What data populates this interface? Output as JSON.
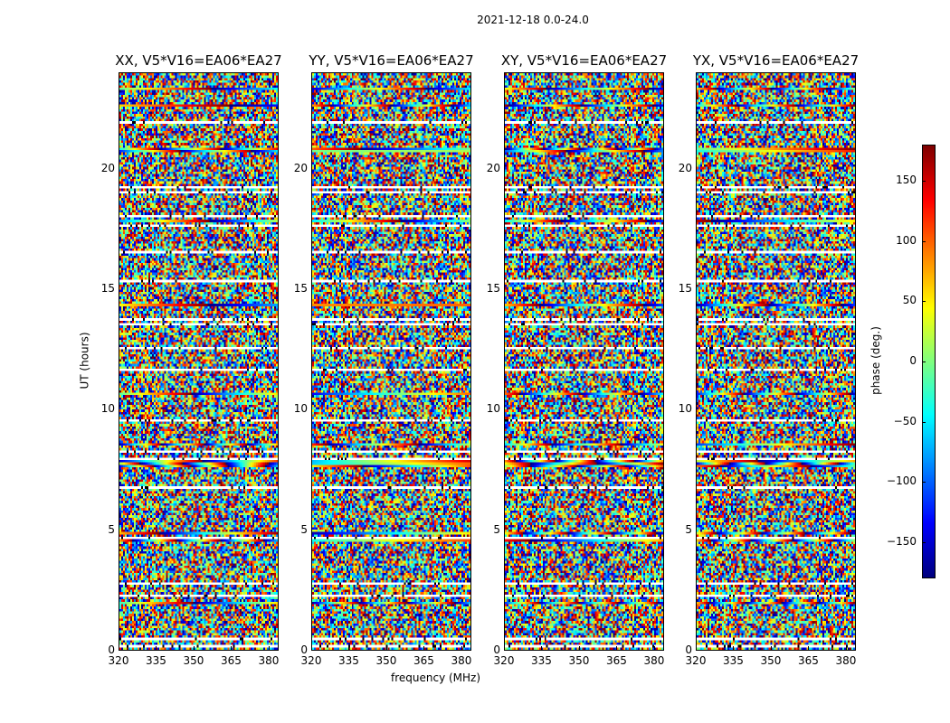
{
  "chart_data": {
    "type": "heatmap",
    "title": "2021-12-18 0.0-24.0",
    "xlabel": "frequency (MHz)",
    "ylabel": "UT (hours)",
    "xlim": [
      320,
      384
    ],
    "ylim": [
      0,
      24
    ],
    "xticks": [
      "320",
      "335",
      "350",
      "365",
      "380"
    ],
    "xtick_values": [
      320,
      335,
      350,
      365,
      380
    ],
    "yticks": [
      "0",
      "5",
      "10",
      "15",
      "20"
    ],
    "ytick_values": [
      0,
      5,
      10,
      15,
      20
    ],
    "panels": [
      {
        "title": "XX, V5*V16=EA06*EA27"
      },
      {
        "title": "YY, V5*V16=EA06*EA27"
      },
      {
        "title": "XY, V5*V16=EA06*EA27"
      },
      {
        "title": "YX, V5*V16=EA06*EA27"
      }
    ],
    "colorbar": {
      "label": "phase (deg.)",
      "range": [
        -180,
        180
      ],
      "colormap": "jet",
      "ticks": [
        "150",
        "100",
        "50",
        "0",
        "−50",
        "−100",
        "−150"
      ],
      "tick_values": [
        150,
        100,
        50,
        0,
        -50,
        -100,
        -150
      ]
    }
  }
}
